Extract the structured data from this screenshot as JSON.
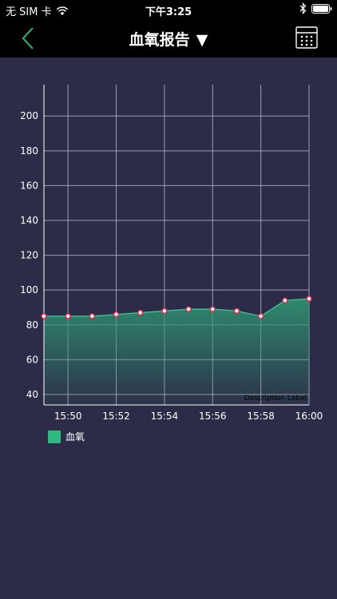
{
  "status": {
    "carrier": "无 SIM 卡",
    "time": "下午3:25"
  },
  "nav": {
    "title": "血氧报告",
    "caret": "▼"
  },
  "chart_data": {
    "type": "area",
    "title": "",
    "xlabel": "",
    "ylabel": "",
    "ylim": [
      34,
      218
    ],
    "xlim": [
      0,
      10
    ],
    "y_ticks": [
      "40",
      "60",
      "80",
      "100",
      "120",
      "140",
      "160",
      "180",
      "200"
    ],
    "x_ticks": [
      "15:50",
      "15:52",
      "15:54",
      "15:56",
      "15:58",
      "16:00"
    ],
    "x": [
      "15:49",
      "15:50",
      "15:51",
      "15:52",
      "15:53",
      "15:54",
      "15:55",
      "15:56",
      "15:57",
      "15:58",
      "15:59",
      "16:00"
    ],
    "series": [
      {
        "name": "血氧",
        "values": [
          85,
          85,
          85,
          86,
          87,
          88,
          89,
          89,
          88,
          85,
          94,
          95
        ]
      }
    ],
    "description": "Description Label",
    "grid": true,
    "colors": {
      "fill": "#2e9a74",
      "line": "#3fcf9a",
      "point": "#e0244a",
      "grid": "#b8b8cc",
      "axis": "#ffffff"
    }
  },
  "legend": {
    "label": "血氧",
    "color": "#2fb980"
  }
}
